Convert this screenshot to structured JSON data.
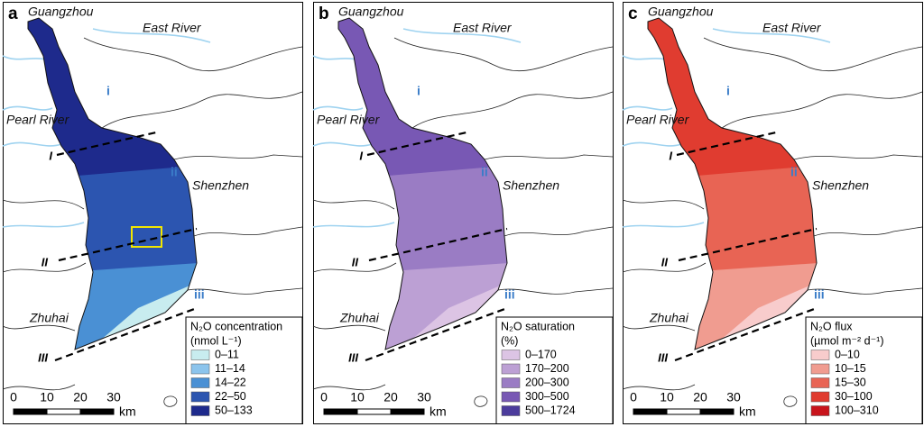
{
  "panels": [
    {
      "letter": "a",
      "places": [
        "Guangzhou",
        "East River",
        "Pearl River",
        "Shenzhen",
        "Zhuhai"
      ],
      "zones": [
        "i",
        "ii",
        "iii"
      ],
      "sections": [
        "I",
        "II",
        "III"
      ],
      "legend": {
        "title": "N₂O concentration",
        "unit": "(nmol L⁻¹)",
        "items": [
          {
            "label": "0–11",
            "color": "#c8ecef"
          },
          {
            "label": "11–14",
            "color": "#8cc4ec"
          },
          {
            "label": "14–22",
            "color": "#4a90d4"
          },
          {
            "label": "22–50",
            "color": "#2c55b0"
          },
          {
            "label": "50–133",
            "color": "#1e2a8c"
          }
        ]
      },
      "scale": {
        "ticks": [
          0,
          10,
          20,
          30
        ],
        "unit": "km"
      }
    },
    {
      "letter": "b",
      "places": [
        "Guangzhou",
        "East River",
        "Pearl River",
        "Shenzhen",
        "Zhuhai"
      ],
      "zones": [
        "i",
        "ii",
        "iii"
      ],
      "sections": [
        "I",
        "II",
        "III"
      ],
      "legend": {
        "title": "N₂O saturation",
        "unit": "(%)",
        "items": [
          {
            "label": "0–170",
            "color": "#dcc4e4"
          },
          {
            "label": "170–200",
            "color": "#bca0d4"
          },
          {
            "label": "200–300",
            "color": "#9a7cc4"
          },
          {
            "label": "300–500",
            "color": "#7858b4"
          },
          {
            "label": "500–1724",
            "color": "#4c3c9c"
          }
        ]
      },
      "scale": {
        "ticks": [
          0,
          10,
          20,
          30
        ],
        "unit": "km"
      }
    },
    {
      "letter": "c",
      "places": [
        "Guangzhou",
        "East River",
        "Pearl River",
        "Shenzhen",
        "Zhuhai"
      ],
      "zones": [
        "i",
        "ii",
        "iii"
      ],
      "sections": [
        "I",
        "II",
        "III"
      ],
      "legend": {
        "title": "N₂O flux",
        "unit": "(µmol m⁻² d⁻¹)",
        "items": [
          {
            "label": "0–10",
            "color": "#f8cccc"
          },
          {
            "label": "10–15",
            "color": "#f09c90"
          },
          {
            "label": "15–30",
            "color": "#e86454"
          },
          {
            "label": "30–100",
            "color": "#e03c30"
          },
          {
            "label": "100–310",
            "color": "#c8141c"
          }
        ]
      },
      "scale": {
        "ticks": [
          0,
          10,
          20,
          30
        ],
        "unit": "km"
      }
    }
  ]
}
